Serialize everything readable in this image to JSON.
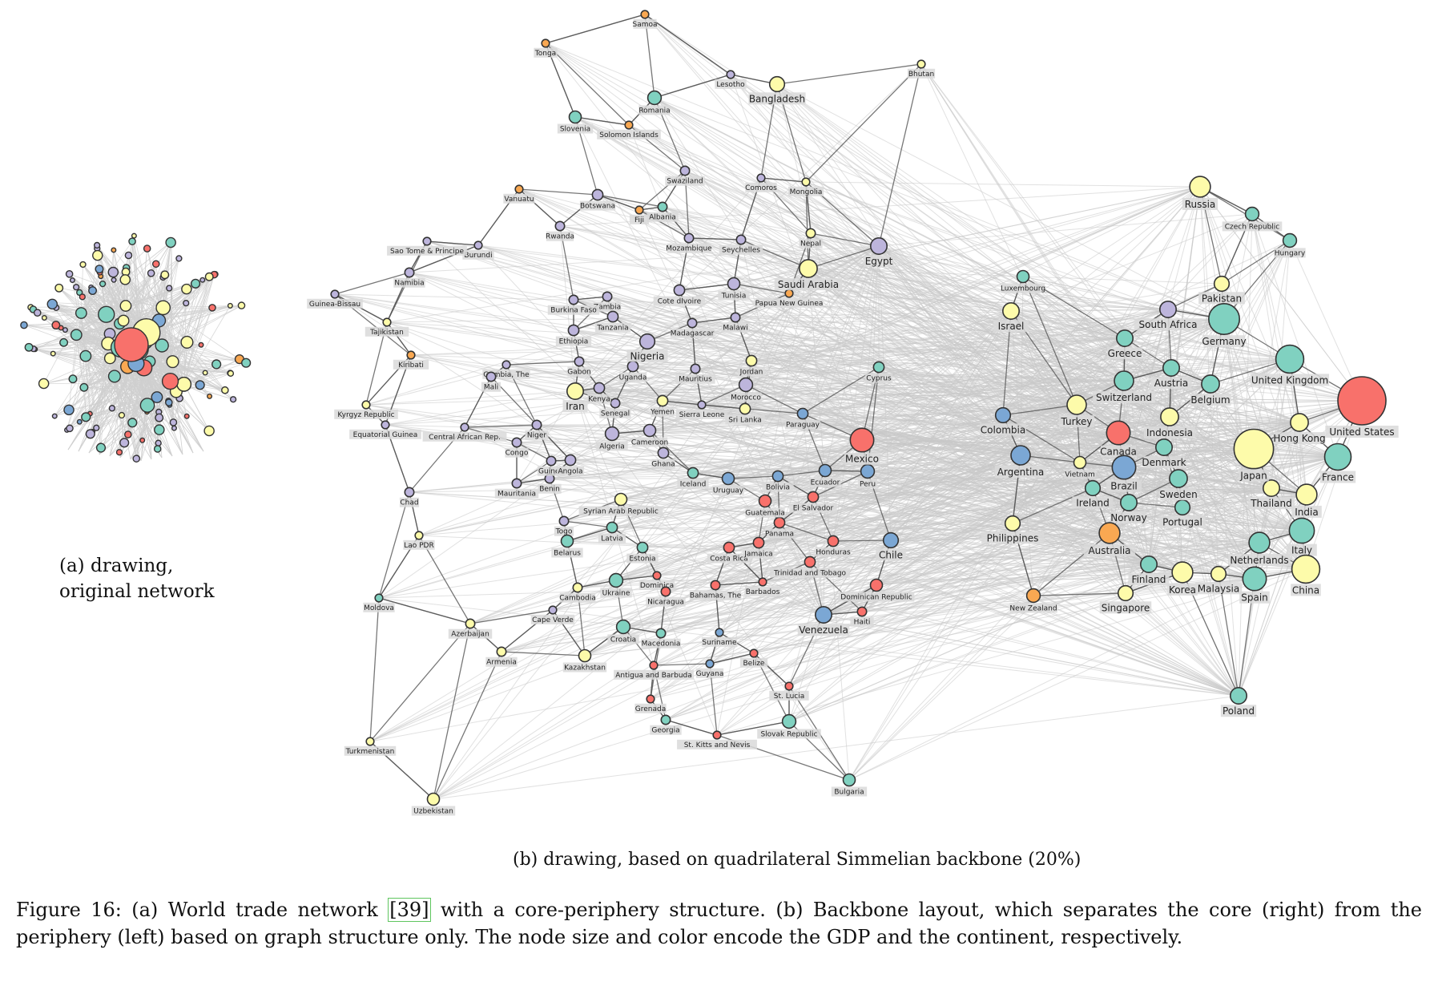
{
  "captions": {
    "panel_a_line1": "(a) drawing,",
    "panel_a_line2": "original network",
    "panel_b": "(b) drawing, based on quadrilateral Simmelian backbone (20%)",
    "figure_prefix": "Figure 16: (a) World trade network ",
    "figure_cite": "[39]",
    "figure_rest": " with a core-periphery structure. (b) Backbone layout, which separates the core (right) from the periphery (left) based on graph structure only. The node size and color encode the GDP and the continent, respectively."
  },
  "colors": {
    "north_america": "#f8716b",
    "europe": "#80d1c0",
    "asia": "#fdfbaa",
    "south_america": "#7ba7d4",
    "africa": "#bdb5dc",
    "oceania": "#f9a852",
    "edge_light": "#c8c8c8",
    "edge_dark": "#555555"
  },
  "chart_data": {
    "type": "network",
    "nodes": [
      {
        "label": "United States",
        "group": "north_america",
        "size": 3
      },
      {
        "label": "Japan",
        "group": "asia",
        "size": 2.4
      },
      {
        "label": "Germany",
        "group": "europe",
        "size": 1.8
      },
      {
        "label": "China",
        "group": "asia",
        "size": 1.6
      },
      {
        "label": "United Kingdom",
        "group": "europe",
        "size": 1.6
      },
      {
        "label": "France",
        "group": "europe",
        "size": 1.5
      },
      {
        "label": "Italy",
        "group": "europe",
        "size": 1.4
      },
      {
        "label": "Canada",
        "group": "north_america",
        "size": 1.3
      },
      {
        "label": "Brazil",
        "group": "south_america",
        "size": 1.3
      },
      {
        "label": "Mexico",
        "group": "north_america",
        "size": 1.3
      },
      {
        "label": "Spain",
        "group": "europe",
        "size": 1.3
      },
      {
        "label": "Russia",
        "group": "asia",
        "size": 1.1
      },
      {
        "label": "Korea",
        "group": "asia",
        "size": 1.1
      },
      {
        "label": "India",
        "group": "asia",
        "size": 1.1
      },
      {
        "label": "Netherlands",
        "group": "europe",
        "size": 1.1
      },
      {
        "label": "Australia",
        "group": "oceania",
        "size": 1.1
      },
      {
        "label": "Argentina",
        "group": "south_america",
        "size": 1.0
      },
      {
        "label": "Switzerland",
        "group": "europe",
        "size": 1.0
      },
      {
        "label": "Saudi Arabia",
        "group": "asia",
        "size": 0.9
      },
      {
        "label": "Turkey",
        "group": "asia",
        "size": 1.0
      },
      {
        "label": "Hong Kong",
        "group": "asia",
        "size": 0.9
      },
      {
        "label": "Indonesia",
        "group": "asia",
        "size": 0.9
      },
      {
        "label": "Sweden",
        "group": "europe",
        "size": 0.9
      },
      {
        "label": "Belgium",
        "group": "europe",
        "size": 0.9
      },
      {
        "label": "Denmark",
        "group": "europe",
        "size": 0.8
      },
      {
        "label": "Norway",
        "group": "europe",
        "size": 0.8
      },
      {
        "label": "Austria",
        "group": "europe",
        "size": 0.8
      },
      {
        "label": "Poland",
        "group": "europe",
        "size": 0.8
      },
      {
        "label": "Venezuela",
        "group": "south_america",
        "size": 0.8
      },
      {
        "label": "Finland",
        "group": "europe",
        "size": 0.8
      },
      {
        "label": "Thailand",
        "group": "asia",
        "size": 0.8
      },
      {
        "label": "Greece",
        "group": "europe",
        "size": 0.8
      },
      {
        "label": "Portugal",
        "group": "europe",
        "size": 0.7
      },
      {
        "label": "Iran",
        "group": "asia",
        "size": 0.8
      },
      {
        "label": "Colombia",
        "group": "south_america",
        "size": 0.7
      },
      {
        "label": "South Africa",
        "group": "africa",
        "size": 0.8
      },
      {
        "label": "Egypt",
        "group": "africa",
        "size": 0.8
      },
      {
        "label": "Nigeria",
        "group": "africa",
        "size": 0.7
      },
      {
        "label": "Chile",
        "group": "south_america",
        "size": 0.7
      },
      {
        "label": "Malaysia",
        "group": "asia",
        "size": 0.7
      },
      {
        "label": "Singapore",
        "group": "asia",
        "size": 0.7
      },
      {
        "label": "Pakistan",
        "group": "asia",
        "size": 0.7
      },
      {
        "label": "Israel",
        "group": "asia",
        "size": 0.8
      },
      {
        "label": "Ireland",
        "group": "europe",
        "size": 0.7
      },
      {
        "label": "New Zealand",
        "group": "oceania",
        "size": 0.6
      },
      {
        "label": "Philippines",
        "group": "asia",
        "size": 0.7
      },
      {
        "label": "Bangladesh",
        "group": "asia",
        "size": 0.7
      },
      {
        "label": "Czech Republic",
        "group": "europe",
        "size": 0.6
      },
      {
        "label": "Hungary",
        "group": "europe",
        "size": 0.6
      },
      {
        "label": "Romania",
        "group": "europe",
        "size": 0.6
      },
      {
        "label": "Peru",
        "group": "south_america",
        "size": 0.6
      },
      {
        "label": "Ukraine",
        "group": "europe",
        "size": 0.6
      },
      {
        "label": "Algeria",
        "group": "africa",
        "size": 0.6
      },
      {
        "label": "Morocco",
        "group": "africa",
        "size": 0.6
      },
      {
        "label": "Slovak Republic",
        "group": "europe",
        "size": 0.6
      },
      {
        "label": "Kazakhstan",
        "group": "asia",
        "size": 0.5
      },
      {
        "label": "Vietnam",
        "group": "asia",
        "size": 0.5
      },
      {
        "label": "Luxembourg",
        "group": "europe",
        "size": 0.5
      },
      {
        "label": "Uzbekistan",
        "group": "asia",
        "size": 0.5
      },
      {
        "label": "Slovenia",
        "group": "europe",
        "size": 0.5
      },
      {
        "label": "Croatia",
        "group": "europe",
        "size": 0.6
      },
      {
        "label": "Tunisia",
        "group": "africa",
        "size": 0.5
      },
      {
        "label": "Cameroon",
        "group": "africa",
        "size": 0.5
      },
      {
        "label": "Bulgaria",
        "group": "europe",
        "size": 0.5
      },
      {
        "label": "Belarus",
        "group": "europe",
        "size": 0.5
      },
      {
        "label": "Ecuador",
        "group": "south_america",
        "size": 0.5
      },
      {
        "label": "Uruguay",
        "group": "south_america",
        "size": 0.5
      },
      {
        "label": "Syrian Arab Republic",
        "group": "asia",
        "size": 0.5
      },
      {
        "label": "Sri Lanka",
        "group": "asia",
        "size": 0.4
      },
      {
        "label": "Guatemala",
        "group": "north_america",
        "size": 0.5
      },
      {
        "label": "Dominican Republic",
        "group": "north_america",
        "size": 0.5
      },
      {
        "label": "Egypt",
        "group": "africa",
        "size": 0.5
      },
      {
        "label": "Kenya",
        "group": "africa",
        "size": 0.4
      },
      {
        "label": "Bolivia",
        "group": "south_america",
        "size": 0.4
      },
      {
        "label": "Paraguay",
        "group": "south_america",
        "size": 0.4
      },
      {
        "label": "Jordan",
        "group": "asia",
        "size": 0.4
      },
      {
        "label": "Cyprus",
        "group": "europe",
        "size": 0.4
      },
      {
        "label": "Latvia",
        "group": "europe",
        "size": 0.4
      },
      {
        "label": "Estonia",
        "group": "europe",
        "size": 0.4
      },
      {
        "label": "Iceland",
        "group": "europe",
        "size": 0.4
      },
      {
        "label": "Costa Rica",
        "group": "north_america",
        "size": 0.4
      },
      {
        "label": "Panama",
        "group": "north_america",
        "size": 0.4
      },
      {
        "label": "El Salvador",
        "group": "north_america",
        "size": 0.4
      },
      {
        "label": "Honduras",
        "group": "north_america",
        "size": 0.4
      },
      {
        "label": "Jamaica",
        "group": "north_america",
        "size": 0.4
      },
      {
        "label": "Trinidad and Tobago",
        "group": "north_america",
        "size": 0.4
      },
      {
        "label": "Haiti",
        "group": "north_america",
        "size": 0.3
      },
      {
        "label": "Ghana",
        "group": "africa",
        "size": 0.4
      },
      {
        "label": "Angola",
        "group": "africa",
        "size": 0.4
      },
      {
        "label": "Ethiopia",
        "group": "africa",
        "size": 0.4
      },
      {
        "label": "Tanzania",
        "group": "africa",
        "size": 0.4
      },
      {
        "label": "Uganda",
        "group": "africa",
        "size": 0.4
      },
      {
        "label": "Yemen",
        "group": "asia",
        "size": 0.4
      },
      {
        "label": "Senegal",
        "group": "africa",
        "size": 0.3
      },
      {
        "label": "Gabon",
        "group": "africa",
        "size": 0.3
      },
      {
        "label": "Madagascar",
        "group": "africa",
        "size": 0.3
      },
      {
        "label": "Mozambique",
        "group": "africa",
        "size": 0.3
      },
      {
        "label": "Zambia",
        "group": "africa",
        "size": 0.3
      },
      {
        "label": "Cote dIvoire",
        "group": "africa",
        "size": 0.4
      },
      {
        "label": "Botswana",
        "group": "africa",
        "size": 0.4
      },
      {
        "label": "Namibia",
        "group": "africa",
        "size": 0.3
      },
      {
        "label": "Rwanda",
        "group": "africa",
        "size": 0.3
      },
      {
        "label": "Swaziland",
        "group": "africa",
        "size": 0.3
      },
      {
        "label": "Mauritius",
        "group": "africa",
        "size": 0.3
      },
      {
        "label": "Malawi",
        "group": "africa",
        "size": 0.3
      },
      {
        "label": "Seychelles",
        "group": "africa",
        "size": 0.3
      },
      {
        "label": "Comoros",
        "group": "africa",
        "size": 0.2
      },
      {
        "label": "Mali",
        "group": "africa",
        "size": 0.3
      },
      {
        "label": "Niger",
        "group": "africa",
        "size": 0.3
      },
      {
        "label": "Benin",
        "group": "africa",
        "size": 0.3
      },
      {
        "label": "Togo",
        "group": "africa",
        "size": 0.3
      },
      {
        "label": "Congo",
        "group": "africa",
        "size": 0.3
      },
      {
        "label": "Guinea",
        "group": "africa",
        "size": 0.3
      },
      {
        "label": "Mauritania",
        "group": "africa",
        "size": 0.3
      },
      {
        "label": "Chad",
        "group": "africa",
        "size": 0.3
      },
      {
        "label": "Burundi",
        "group": "africa",
        "size": 0.2
      },
      {
        "label": "Burkina Faso",
        "group": "africa",
        "size": 0.3
      },
      {
        "label": "Gambia, The",
        "group": "africa",
        "size": 0.2
      },
      {
        "label": "Sierra Leone",
        "group": "africa",
        "size": 0.2
      },
      {
        "label": "Central African Rep.",
        "group": "africa",
        "size": 0.2
      },
      {
        "label": "Equatorial Guinea",
        "group": "africa",
        "size": 0.2
      },
      {
        "label": "Guinea-Bissau",
        "group": "africa",
        "size": 0.2
      },
      {
        "label": "Sao Tome & Principe",
        "group": "africa",
        "size": 0.2
      },
      {
        "label": "Cape Verde",
        "group": "africa",
        "size": 0.2
      },
      {
        "label": "Lesotho",
        "group": "africa",
        "size": 0.2
      },
      {
        "label": "Fiji",
        "group": "oceania",
        "size": 0.2
      },
      {
        "label": "Albania",
        "group": "europe",
        "size": 0.3
      },
      {
        "label": "Vanuatu",
        "group": "oceania",
        "size": 0.2
      },
      {
        "label": "Solomon Islands",
        "group": "oceania",
        "size": 0.2
      },
      {
        "label": "Papua New Guinea",
        "group": "oceania",
        "size": 0.2
      },
      {
        "label": "Samoa",
        "group": "oceania",
        "size": 0.2
      },
      {
        "label": "Tonga",
        "group": "oceania",
        "size": 0.2
      },
      {
        "label": "Kiribati",
        "group": "oceania",
        "size": 0.2
      },
      {
        "label": "Nepal",
        "group": "asia",
        "size": 0.3
      },
      {
        "label": "Mongolia",
        "group": "asia",
        "size": 0.2
      },
      {
        "label": "Bhutan",
        "group": "asia",
        "size": 0.2
      },
      {
        "label": "Tajikistan",
        "group": "asia",
        "size": 0.2
      },
      {
        "label": "Kyrgyz Republic",
        "group": "asia",
        "size": 0.2
      },
      {
        "label": "Lao PDR",
        "group": "asia",
        "size": 0.2
      },
      {
        "label": "Turkmenistan",
        "group": "asia",
        "size": 0.2
      },
      {
        "label": "Azerbaijan",
        "group": "asia",
        "size": 0.3
      },
      {
        "label": "Armenia",
        "group": "asia",
        "size": 0.3
      },
      {
        "label": "Cambodia",
        "group": "asia",
        "size": 0.3
      },
      {
        "label": "Georgia",
        "group": "europe",
        "size": 0.3
      },
      {
        "label": "Moldova",
        "group": "europe",
        "size": 0.2
      },
      {
        "label": "Macedonia",
        "group": "europe",
        "size": 0.3
      },
      {
        "label": "Nicaragua",
        "group": "north_america",
        "size": 0.3
      },
      {
        "label": "Dominica",
        "group": "north_america",
        "size": 0.2
      },
      {
        "label": "Bahamas, The",
        "group": "north_america",
        "size": 0.3
      },
      {
        "label": "Barbados",
        "group": "north_america",
        "size": 0.2
      },
      {
        "label": "Belize",
        "group": "north_america",
        "size": 0.2
      },
      {
        "label": "Antigua and Barbuda",
        "group": "north_america",
        "size": 0.2
      },
      {
        "label": "Grenada",
        "group": "north_america",
        "size": 0.2
      },
      {
        "label": "St. Lucia",
        "group": "north_america",
        "size": 0.2
      },
      {
        "label": "St. Kitts and Nevis",
        "group": "north_america",
        "size": 0.2
      },
      {
        "label": "Suriname",
        "group": "south_america",
        "size": 0.2
      },
      {
        "label": "Guyana",
        "group": "south_america",
        "size": 0.2
      }
    ]
  }
}
